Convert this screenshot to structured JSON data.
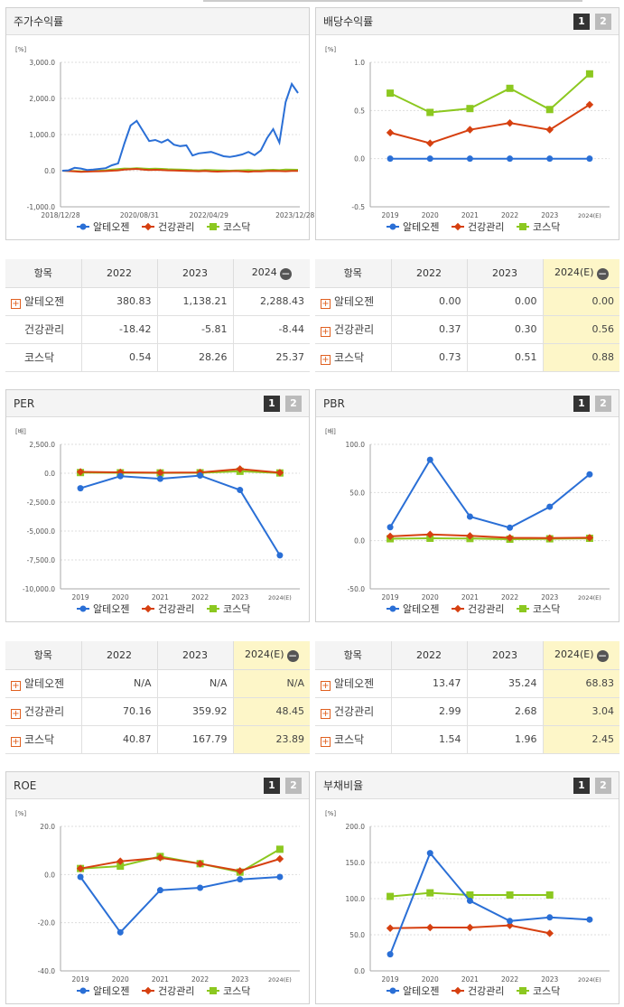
{
  "colors": {
    "s1": "#2a6fd6",
    "s2": "#d64010",
    "s3": "#8cc820"
  },
  "legend": [
    "알테오젠",
    "건강관리",
    "코스닥"
  ],
  "buttons": {
    "b1": "1",
    "b2": "2"
  },
  "panels": {
    "stock": {
      "title": "주가수익률"
    },
    "div": {
      "title": "배당수익률"
    },
    "per": {
      "title": "PER"
    },
    "pbr": {
      "title": "PBR"
    },
    "roe": {
      "title": "ROE"
    },
    "debt": {
      "title": "부채비율"
    }
  },
  "chart_data": [
    {
      "id": "stock",
      "type": "line",
      "ylabel": "[%]",
      "yticks": [
        "3,000.0",
        "2,000.0",
        "1,000.0",
        "0.0",
        "-1,000.0"
      ],
      "xticks": [
        "2018/12/28",
        "2020/08/31",
        "2022/04/29",
        "2023/12/28"
      ],
      "ylim": [
        -1000,
        3000
      ],
      "series": [
        {
          "name": "알테오젠",
          "values": [
            0,
            10,
            80,
            60,
            20,
            30,
            50,
            70,
            150,
            200,
            750,
            1250,
            1380,
            1100,
            820,
            850,
            780,
            860,
            720,
            680,
            700,
            420,
            480,
            500,
            520,
            460,
            400,
            380,
            410,
            450,
            520,
            430,
            560,
            900,
            1150,
            780,
            1900,
            2400,
            2150
          ]
        },
        {
          "name": "건강관리",
          "values": [
            0,
            -10,
            -20,
            -30,
            -25,
            -20,
            -15,
            -10,
            0,
            10,
            30,
            40,
            50,
            30,
            20,
            25,
            20,
            10,
            5,
            0,
            -5,
            -10,
            -15,
            -5,
            -20,
            -25,
            -20,
            -15,
            -10,
            -20,
            -30,
            -15,
            -20,
            -10,
            -5,
            -10,
            -15,
            -8,
            -8
          ]
        },
        {
          "name": "코스닥",
          "values": [
            0,
            -5,
            -10,
            -20,
            -15,
            -5,
            0,
            10,
            30,
            45,
            60,
            55,
            70,
            60,
            50,
            55,
            50,
            40,
            35,
            30,
            25,
            15,
            10,
            20,
            15,
            10,
            5,
            0,
            5,
            10,
            15,
            5,
            10,
            20,
            25,
            15,
            30,
            28,
            25
          ]
        }
      ]
    },
    {
      "id": "div",
      "type": "line",
      "ylabel": "[%]",
      "yticks": [
        "1.0",
        "0.5",
        "0.0",
        "-0.5"
      ],
      "ylim": [
        -0.5,
        1.0
      ],
      "categories": [
        "2019",
        "2020",
        "2021",
        "2022",
        "2023",
        "2024(E)"
      ],
      "series": [
        {
          "name": "알테오젠",
          "values": [
            0.0,
            0.0,
            0.0,
            0.0,
            0.0,
            0.0
          ]
        },
        {
          "name": "건강관리",
          "values": [
            0.27,
            0.16,
            0.3,
            0.37,
            0.3,
            0.56
          ]
        },
        {
          "name": "코스닥",
          "values": [
            0.68,
            0.48,
            0.52,
            0.73,
            0.51,
            0.88
          ]
        }
      ]
    },
    {
      "id": "per",
      "type": "line",
      "ylabel": "[배]",
      "yticks": [
        "2,500.0",
        "0.0",
        "-2,500.0",
        "-5,000.0",
        "-7,500.0",
        "-10,000.0"
      ],
      "ylim": [
        -10000,
        2500
      ],
      "categories": [
        "2019",
        "2020",
        "2021",
        "2022",
        "2023",
        "2024(E)"
      ],
      "series": [
        {
          "name": "알테오젠",
          "values": [
            -1300,
            -250,
            -480,
            -200,
            -1450,
            -7100
          ]
        },
        {
          "name": "건강관리",
          "values": [
            120,
            80,
            50,
            70,
            360,
            48
          ]
        },
        {
          "name": "코스닥",
          "values": [
            60,
            40,
            30,
            41,
            168,
            24
          ]
        }
      ]
    },
    {
      "id": "pbr",
      "type": "line",
      "ylabel": "[배]",
      "yticks": [
        "100.0",
        "50.0",
        "0.0",
        "-50.0"
      ],
      "ylim": [
        -50,
        100
      ],
      "categories": [
        "2019",
        "2020",
        "2021",
        "2022",
        "2023",
        "2024(E)"
      ],
      "series": [
        {
          "name": "알테오젠",
          "values": [
            14,
            84,
            25,
            13.47,
            35.24,
            68.83
          ]
        },
        {
          "name": "건강관리",
          "values": [
            4.5,
            6.5,
            5.0,
            2.99,
            2.68,
            3.04
          ]
        },
        {
          "name": "코스닥",
          "values": [
            2.0,
            2.5,
            2.2,
            1.54,
            1.96,
            2.45
          ]
        }
      ]
    },
    {
      "id": "roe",
      "type": "line",
      "ylabel": "[%]",
      "yticks": [
        "20.0",
        "0.0",
        "-20.0",
        "-40.0"
      ],
      "ylim": [
        -40,
        20
      ],
      "categories": [
        "2019",
        "2020",
        "2021",
        "2022",
        "2023",
        "2024(E)"
      ],
      "series": [
        {
          "name": "알테오젠",
          "values": [
            -1,
            -24,
            -6.5,
            -5.5,
            -2,
            -1
          ]
        },
        {
          "name": "건강관리",
          "values": [
            2.5,
            5.5,
            7,
            4.5,
            1.5,
            6.5
          ]
        },
        {
          "name": "코스닥",
          "values": [
            2.5,
            3.5,
            7.5,
            4.5,
            1,
            10.5
          ]
        }
      ]
    },
    {
      "id": "debt",
      "type": "line",
      "ylabel": "[%]",
      "yticks": [
        "200.0",
        "150.0",
        "100.0",
        "50.0",
        "0.0"
      ],
      "ylim": [
        0,
        200
      ],
      "categories": [
        "2019",
        "2020",
        "2021",
        "2022",
        "2023",
        "2024(E)"
      ],
      "series": [
        {
          "name": "알테오젠",
          "values": [
            23,
            163,
            97,
            69,
            74,
            71
          ]
        },
        {
          "name": "건강관리",
          "values": [
            59,
            60,
            60,
            63,
            52,
            null
          ]
        },
        {
          "name": "코스닥",
          "values": [
            103,
            108,
            105,
            105,
            105,
            null
          ]
        }
      ]
    }
  ],
  "tables": {
    "stock": {
      "headers": [
        "항목",
        "2022",
        "2023",
        "2024"
      ],
      "rows": [
        {
          "name": "알테오젠",
          "plus": true,
          "vals": [
            "380.83",
            "1,138.21",
            "2,288.43"
          ]
        },
        {
          "name": "건강관리",
          "plus": false,
          "vals": [
            "-18.42",
            "-5.81",
            "-8.44"
          ]
        },
        {
          "name": "코스닥",
          "plus": false,
          "vals": [
            "0.54",
            "28.26",
            "25.37"
          ]
        }
      ]
    },
    "div": {
      "headers": [
        "항목",
        "2022",
        "2023",
        "2024(E)"
      ],
      "rows": [
        {
          "name": "알테오젠",
          "plus": true,
          "vals": [
            "0.00",
            "0.00",
            "0.00"
          ]
        },
        {
          "name": "건강관리",
          "plus": true,
          "vals": [
            "0.37",
            "0.30",
            "0.56"
          ]
        },
        {
          "name": "코스닥",
          "plus": true,
          "vals": [
            "0.73",
            "0.51",
            "0.88"
          ]
        }
      ]
    },
    "per": {
      "headers": [
        "항목",
        "2022",
        "2023",
        "2024(E)"
      ],
      "rows": [
        {
          "name": "알테오젠",
          "plus": true,
          "vals": [
            "N/A",
            "N/A",
            "N/A"
          ]
        },
        {
          "name": "건강관리",
          "plus": true,
          "vals": [
            "70.16",
            "359.92",
            "48.45"
          ]
        },
        {
          "name": "코스닥",
          "plus": true,
          "vals": [
            "40.87",
            "167.79",
            "23.89"
          ]
        }
      ]
    },
    "pbr": {
      "headers": [
        "항목",
        "2022",
        "2023",
        "2024(E)"
      ],
      "rows": [
        {
          "name": "알테오젠",
          "plus": true,
          "vals": [
            "13.47",
            "35.24",
            "68.83"
          ]
        },
        {
          "name": "건강관리",
          "plus": true,
          "vals": [
            "2.99",
            "2.68",
            "3.04"
          ]
        },
        {
          "name": "코스닥",
          "plus": true,
          "vals": [
            "1.54",
            "1.96",
            "2.45"
          ]
        }
      ]
    }
  }
}
